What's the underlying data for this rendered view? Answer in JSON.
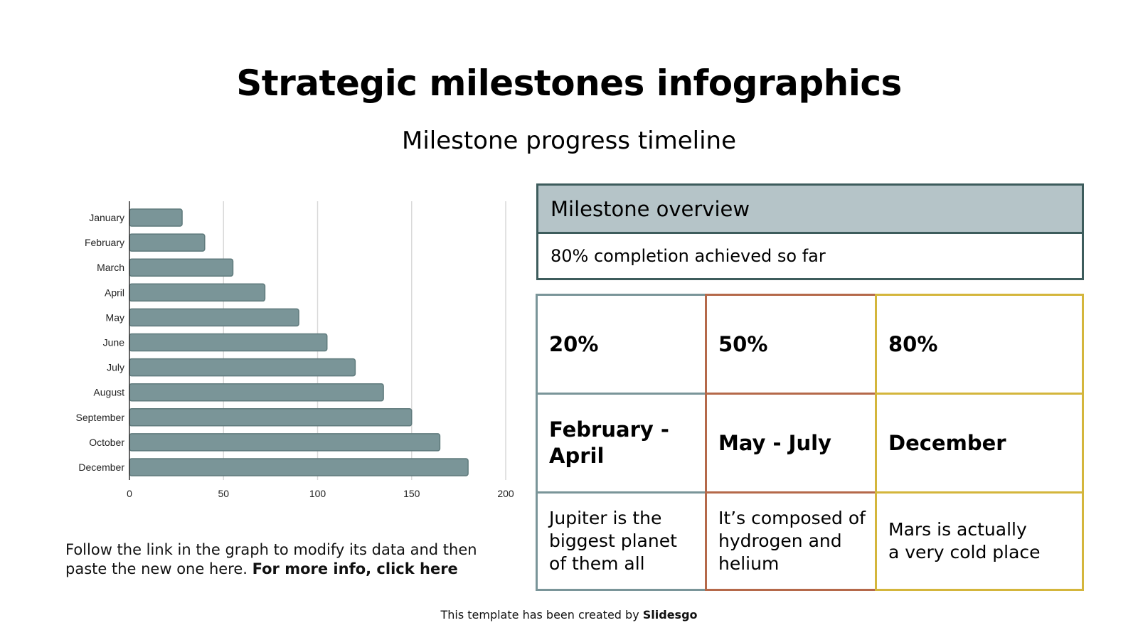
{
  "header": {
    "title": "Strategic milestones infographics",
    "subtitle": "Milestone progress timeline"
  },
  "chart_data": {
    "type": "bar",
    "orientation": "horizontal",
    "title": "",
    "xlabel": "",
    "ylabel": "",
    "categories": [
      "January",
      "February",
      "March",
      "April",
      "May",
      "June",
      "July",
      "August",
      "September",
      "October",
      "December"
    ],
    "values": [
      28,
      40,
      55,
      72,
      90,
      105,
      120,
      135,
      150,
      165,
      180
    ],
    "xlim": [
      0,
      200
    ],
    "xticks": [
      0,
      50,
      100,
      150,
      200
    ],
    "grid": "vertical",
    "legend": "none",
    "bar_color": "#7a9598",
    "bar_border": "#5f7a7c"
  },
  "overview": {
    "heading": "Milestone overview",
    "summary": "80% completion achieved so far",
    "border_color": "#3d5c5c",
    "header_fill": "#b5c4c8"
  },
  "milestones": [
    {
      "percent": "20%",
      "period_line1": "February -",
      "period_line2": "April",
      "description_lines": [
        "Jupiter is the",
        "biggest planet",
        "of them all"
      ],
      "color": "#7a9599"
    },
    {
      "percent": "50%",
      "period_line1": "May - July",
      "period_line2": "",
      "description_lines": [
        "It’s composed of",
        "hydrogen and",
        "helium"
      ],
      "color": "#b5694a"
    },
    {
      "percent": "80%",
      "period_line1": "December",
      "period_line2": "",
      "description_lines": [
        "Mars is actually",
        "a very cold place"
      ],
      "color": "#d4b63c"
    }
  ],
  "note": {
    "line1": "Follow the link in the graph to modify its data and then",
    "line2_plain": "paste the new one here. ",
    "line2_link": "For more info, click here"
  },
  "footer": {
    "plain": "This template has been created by ",
    "brand": "Slidesgo"
  }
}
